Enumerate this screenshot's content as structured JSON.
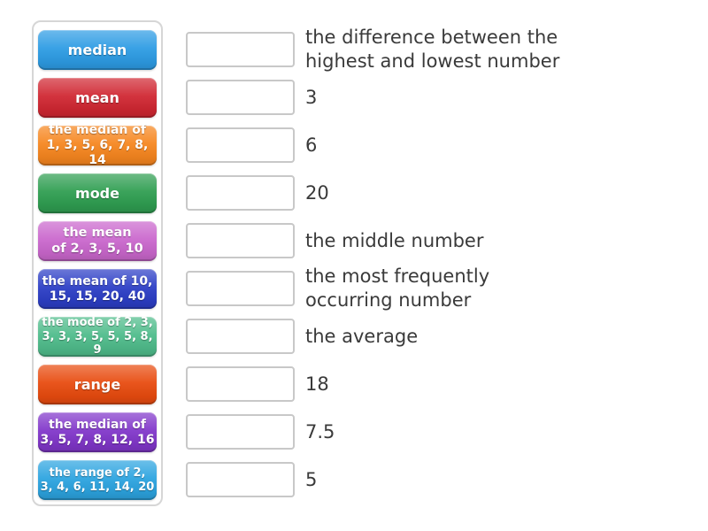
{
  "activity": {
    "kind": "match-up",
    "page_background": "#ffffff",
    "panel_border_color": "#d6d6d6",
    "dropzone_border_color": "#c8c8c8",
    "answer_text_color": "#3a3a3a"
  },
  "tiles": [
    {
      "label": "median",
      "color": "#2d9ce4"
    },
    {
      "label": "mean",
      "color": "#d02732"
    },
    {
      "label": "the median of\n1, 3, 5, 6, 7, 8, 14",
      "color": "#f6861f"
    },
    {
      "label": "mode",
      "color": "#2f9e51"
    },
    {
      "label": "the mean\nof 2, 3, 5, 10",
      "color": "#ca67cd"
    },
    {
      "label": "the mean of 10,\n15, 15, 20, 40",
      "color": "#2c3ec6"
    },
    {
      "label": "the mode of 2, 3,\n3, 3, 3, 5, 5, 5, 8, 9",
      "color": "#4fbc8b"
    },
    {
      "label": "range",
      "color": "#e84b0f"
    },
    {
      "label": "the median of\n3, 5, 7, 8, 12, 16",
      "color": "#8136ca"
    },
    {
      "label": "the range of 2,\n3, 4, 6, 11, 14, 20",
      "color": "#2ca4e0"
    }
  ],
  "answers": [
    "the difference between the\nhighest and lowest number",
    "3",
    "6",
    "20",
    "the middle number",
    "the most frequently\noccurring number",
    "the average",
    "18",
    "7.5",
    "5"
  ]
}
